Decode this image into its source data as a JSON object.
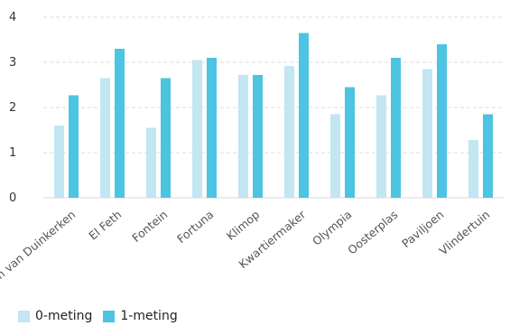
{
  "chart_data": {
    "type": "bar",
    "categories": [
      "Anton van Duinkerken",
      "El Feth",
      "Fontein",
      "Fortuna",
      "Klimop",
      "Kwartiermaker",
      "Olympia",
      "Oosterplas",
      "Paviljoen",
      "Vlindertuin"
    ],
    "series": [
      {
        "name": "0-meting",
        "color": "#c2e6f2",
        "values": [
          1.6,
          2.65,
          1.55,
          3.05,
          2.72,
          2.92,
          1.85,
          2.27,
          2.85,
          1.28
        ]
      },
      {
        "name": "1-meting",
        "color": "#4cc4e2",
        "values": [
          2.27,
          3.3,
          2.65,
          3.1,
          2.72,
          3.65,
          2.45,
          3.1,
          3.4,
          1.85
        ]
      }
    ],
    "yticks": [
      "0",
      "1",
      "2",
      "3",
      "4"
    ],
    "ylim": [
      0,
      4
    ],
    "grid": true,
    "legend_position": "bottom-left"
  }
}
